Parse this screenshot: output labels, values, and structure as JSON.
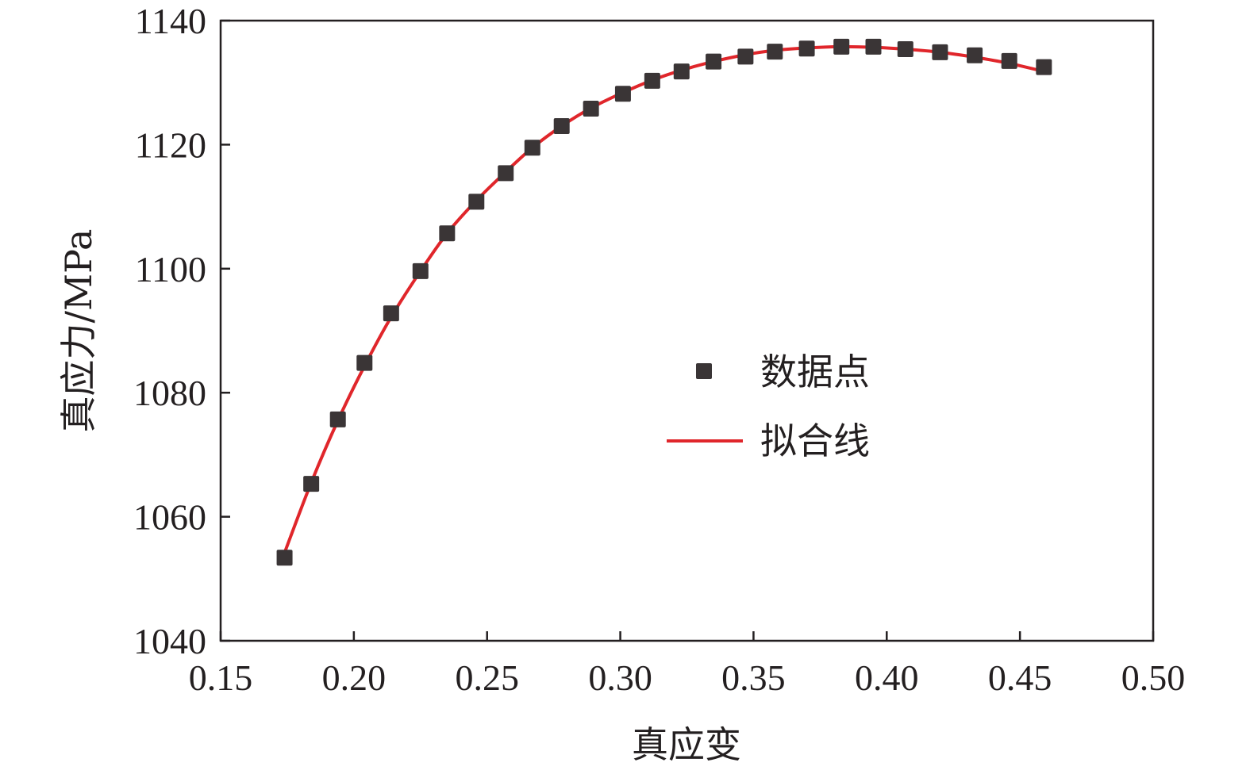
{
  "chart_data": {
    "type": "scatter",
    "xlabel": "真应变",
    "ylabel": "真应力/MPa",
    "xlim": [
      0.15,
      0.5
    ],
    "ylim": [
      1040,
      1140
    ],
    "xticks": [
      "0.15",
      "0.20",
      "0.25",
      "0.30",
      "0.35",
      "0.40",
      "0.45",
      "0.50"
    ],
    "yticks": [
      "1040",
      "1060",
      "1080",
      "1100",
      "1120",
      "1140"
    ],
    "grid": false,
    "legend_position": "center",
    "colors": {
      "points": "#3a3536",
      "fit": "#e0262b",
      "axis": "#231f20"
    },
    "series": [
      {
        "name": "数据点",
        "kind": "scatter",
        "x": [
          0.174,
          0.184,
          0.194,
          0.204,
          0.214,
          0.225,
          0.235,
          0.246,
          0.257,
          0.267,
          0.278,
          0.289,
          0.301,
          0.312,
          0.323,
          0.335,
          0.347,
          0.358,
          0.37,
          0.383,
          0.395,
          0.407,
          0.42,
          0.433,
          0.446,
          0.459
        ],
        "y": [
          1053.4,
          1065.3,
          1075.7,
          1084.8,
          1092.8,
          1099.6,
          1105.7,
          1110.8,
          1115.4,
          1119.5,
          1123.0,
          1125.8,
          1128.2,
          1130.3,
          1131.8,
          1133.4,
          1134.2,
          1135.0,
          1135.5,
          1135.8,
          1135.8,
          1135.4,
          1134.9,
          1134.4,
          1133.5,
          1132.5
        ]
      },
      {
        "name": "拟合线",
        "kind": "line",
        "x": [
          0.174,
          0.184,
          0.194,
          0.204,
          0.214,
          0.225,
          0.235,
          0.246,
          0.257,
          0.267,
          0.278,
          0.289,
          0.301,
          0.312,
          0.323,
          0.335,
          0.347,
          0.358,
          0.37,
          0.383,
          0.395,
          0.407,
          0.42,
          0.433,
          0.446,
          0.459
        ],
        "y": [
          1054.2,
          1065.5,
          1075.5,
          1084.3,
          1092.2,
          1099.6,
          1105.7,
          1111.0,
          1115.6,
          1119.5,
          1123.0,
          1125.9,
          1128.4,
          1130.4,
          1132.0,
          1133.4,
          1134.5,
          1135.2,
          1135.6,
          1135.8,
          1135.7,
          1135.4,
          1134.9,
          1134.1,
          1133.1,
          1131.8
        ]
      }
    ]
  }
}
